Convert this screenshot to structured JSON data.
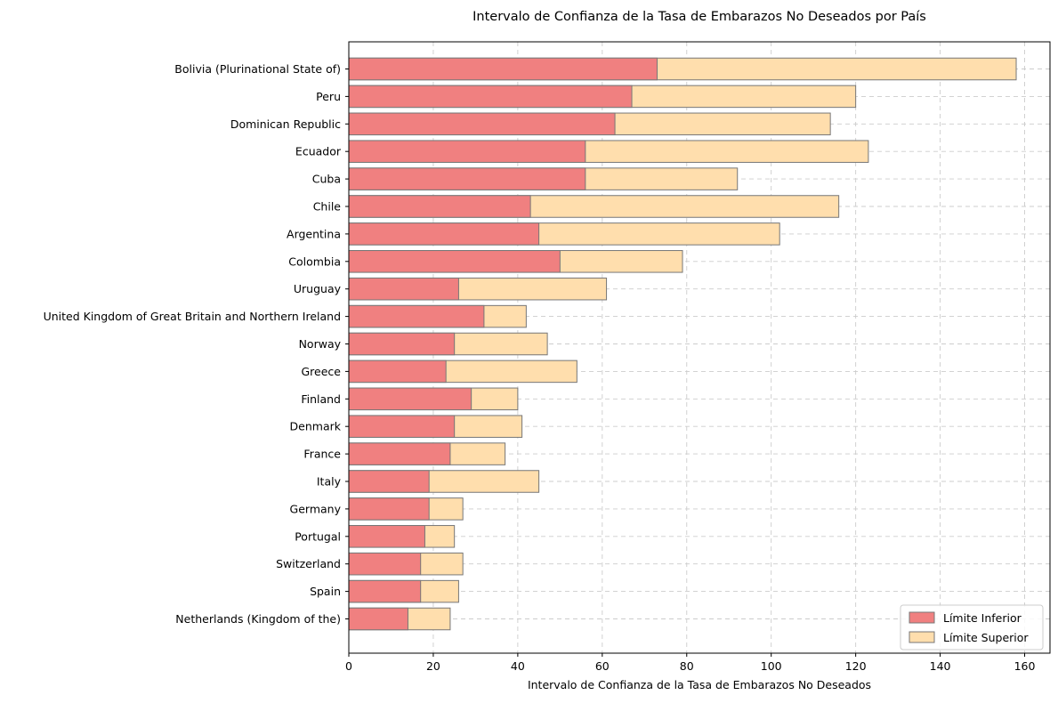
{
  "chart_data": {
    "type": "bar",
    "orientation": "horizontal",
    "stacked": false,
    "title": "Intervalo de Confianza de la Tasa de Embarazos No Deseados por País",
    "xlabel": "Intervalo de Confianza de la Tasa de Embarazos No Deseados",
    "ylabel": "",
    "xlim": [
      0,
      166
    ],
    "xticks": [
      0,
      20,
      40,
      60,
      80,
      100,
      120,
      140,
      160
    ],
    "grid": true,
    "legend": {
      "position": "lower-right"
    },
    "categories": [
      "Bolivia (Plurinational State of)",
      "Peru",
      "Dominican Republic",
      "Ecuador",
      "Cuba",
      "Chile",
      "Argentina",
      "Colombia",
      "Uruguay",
      "United Kingdom of Great Britain and Northern Ireland",
      "Norway",
      "Greece",
      "Finland",
      "Denmark",
      "France",
      "Italy",
      "Germany",
      "Portugal",
      "Switzerland",
      "Spain",
      "Netherlands (Kingdom of the)"
    ],
    "series": [
      {
        "name": "Límite Superior",
        "color": "#ffdead",
        "values": [
          158,
          120,
          114,
          123,
          92,
          116,
          102,
          79,
          61,
          42,
          47,
          54,
          40,
          41,
          37,
          45,
          27,
          25,
          27,
          26,
          24
        ]
      },
      {
        "name": "Límite Inferior",
        "color": "#f08080",
        "values": [
          73,
          67,
          63,
          56,
          56,
          43,
          45,
          50,
          26,
          32,
          25,
          23,
          29,
          25,
          24,
          19,
          19,
          18,
          17,
          17,
          14
        ]
      }
    ]
  }
}
